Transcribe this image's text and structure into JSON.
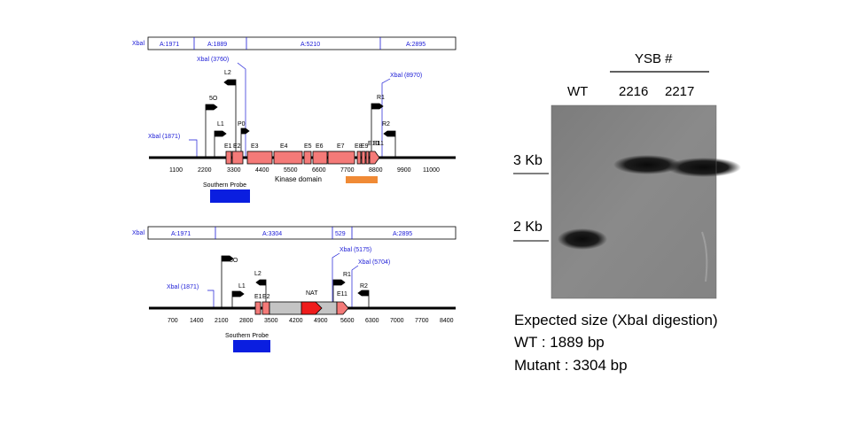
{
  "top_map": {
    "xbai_tag": "Xbal",
    "segments": [
      "A:1971",
      "A:1889",
      "A:5210",
      "A:2895"
    ],
    "xbai_sites": [
      "Xbal (1871)",
      "Xbal (3760)",
      "Xbal (8970)"
    ],
    "primers": [
      "5O",
      "L1",
      "L2",
      "P0",
      "R1",
      "R2"
    ],
    "exons": [
      "E1",
      "E2",
      "E3",
      "E4",
      "E5",
      "E6",
      "E7",
      "E8",
      "E9",
      "E10",
      "E11"
    ],
    "exon_letter": "I",
    "ruler": [
      "1100",
      "2200",
      "3300",
      "4400",
      "5500",
      "6600",
      "7700",
      "8800",
      "9900",
      "11000"
    ],
    "kinase_label": "Kinase domain",
    "probe_label": "Southern Probe",
    "colors": {
      "exon": "#f47a78",
      "kinase": "#f08a35",
      "probe": "#0a1ee0"
    }
  },
  "bottom_map": {
    "xbai_tag": "Xbal",
    "segments": [
      "A:1971",
      "A:3304",
      "529",
      "A:2895"
    ],
    "xbai_sites": [
      "Xbal (1871)",
      "Xbal (5175)",
      "Xbal (5704)"
    ],
    "primers": [
      "5O",
      "L1",
      "L2",
      "R1",
      "R2"
    ],
    "exons": [
      "E1",
      "E2",
      "E11"
    ],
    "nat_label": "NAT",
    "ruler": [
      "700",
      "1400",
      "2100",
      "2800",
      "3500",
      "4200",
      "4900",
      "5600",
      "6300",
      "7000",
      "7700",
      "8400"
    ],
    "probe_label": "Southern Probe",
    "colors": {
      "exon": "#f47a78",
      "nat": "#ee1c1c",
      "probe": "#0a1ee0",
      "grey": "#c4c4c4"
    }
  },
  "blot": {
    "header": "YSB #",
    "lanes": [
      "WT",
      "2216",
      "2217"
    ],
    "markers": [
      "3 Kb",
      "2 Kb"
    ]
  },
  "notes": {
    "line1": "Expected size (XbaI digestion)",
    "line2": "WT : 1889 bp",
    "line3": "Mutant : 3304 bp"
  }
}
